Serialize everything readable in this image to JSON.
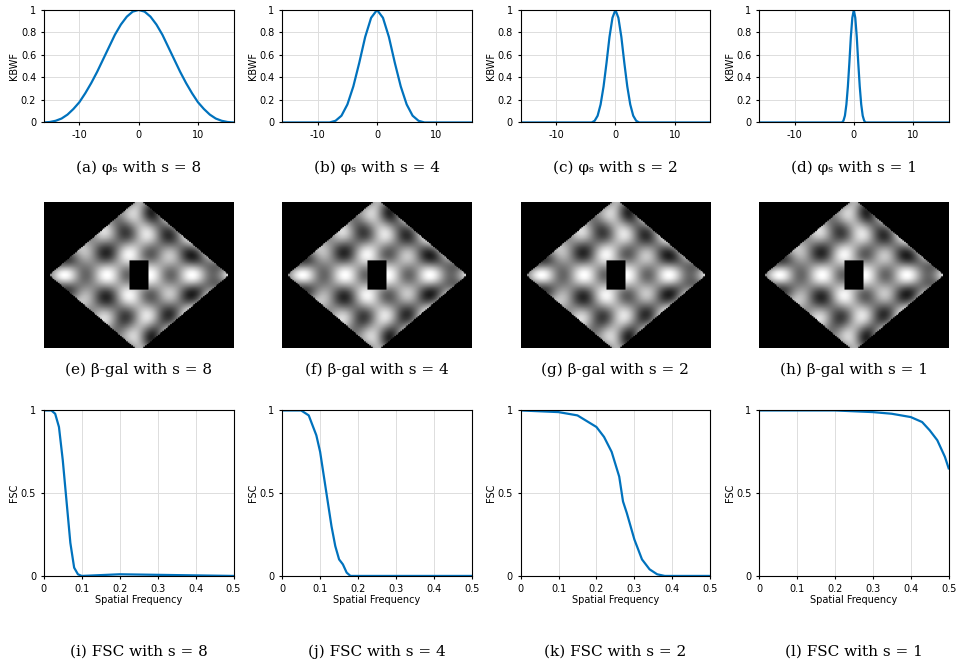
{
  "chart_data": [
    {
      "type": "line",
      "title": "(a) φₛ with s = 8",
      "ylabel": "KBWF",
      "color": "#0072bd",
      "grid": true,
      "x": [
        -16,
        -15,
        -14,
        -13,
        -12,
        -11,
        -10,
        -9,
        -8,
        -7,
        -6,
        -5,
        -4,
        -3,
        -2,
        -1,
        0,
        1,
        2,
        3,
        4,
        5,
        6,
        7,
        8,
        9,
        10,
        11,
        12,
        13,
        14,
        15,
        16
      ],
      "values": [
        0,
        0.004,
        0.015,
        0.035,
        0.07,
        0.12,
        0.18,
        0.26,
        0.35,
        0.45,
        0.56,
        0.67,
        0.78,
        0.87,
        0.94,
        0.985,
        1,
        0.985,
        0.94,
        0.87,
        0.78,
        0.67,
        0.56,
        0.45,
        0.35,
        0.26,
        0.18,
        0.12,
        0.07,
        0.035,
        0.015,
        0.004,
        0
      ],
      "xlim": [
        -16,
        16
      ],
      "ylim": [
        0,
        1
      ],
      "xticks": [
        -10,
        0,
        10
      ],
      "yticks": [
        0,
        0.2,
        0.4,
        0.6,
        0.8,
        1
      ]
    },
    {
      "type": "line",
      "title": "(b) φₛ with s = 4",
      "ylabel": "KBWF",
      "color": "#0072bd",
      "grid": true,
      "x": [
        -16,
        -8,
        -7,
        -6,
        -5,
        -4,
        -3,
        -2,
        -1,
        0,
        1,
        2,
        3,
        4,
        5,
        6,
        7,
        8,
        16
      ],
      "values": [
        0,
        0,
        0.015,
        0.06,
        0.16,
        0.32,
        0.53,
        0.76,
        0.93,
        1,
        0.93,
        0.76,
        0.53,
        0.32,
        0.16,
        0.06,
        0.015,
        0,
        0
      ],
      "xlim": [
        -16,
        16
      ],
      "ylim": [
        0,
        1
      ],
      "xticks": [
        -10,
        0,
        10
      ],
      "yticks": [
        0,
        0.2,
        0.4,
        0.6,
        0.8,
        1
      ]
    },
    {
      "type": "line",
      "title": "(c) φₛ with s = 2",
      "ylabel": "KBWF",
      "color": "#0072bd",
      "grid": true,
      "x": [
        -16,
        -4,
        -3.5,
        -3,
        -2.5,
        -2,
        -1.5,
        -1,
        -0.5,
        0,
        0.5,
        1,
        1.5,
        2,
        2.5,
        3,
        3.5,
        4,
        16
      ],
      "values": [
        0,
        0,
        0.015,
        0.06,
        0.16,
        0.32,
        0.53,
        0.76,
        0.93,
        1,
        0.93,
        0.76,
        0.53,
        0.32,
        0.16,
        0.06,
        0.015,
        0,
        0
      ],
      "xlim": [
        -16,
        16
      ],
      "ylim": [
        0,
        1
      ],
      "xticks": [
        -10,
        0,
        10
      ],
      "yticks": [
        0,
        0.2,
        0.4,
        0.6,
        0.8,
        1
      ]
    },
    {
      "type": "line",
      "title": "(d) φₛ with s = 1",
      "ylabel": "KBWF",
      "color": "#0072bd",
      "grid": true,
      "x": [
        -16,
        -2,
        -1.75,
        -1.5,
        -1.25,
        -1,
        -0.75,
        -0.5,
        -0.25,
        0,
        0.25,
        0.5,
        0.75,
        1,
        1.25,
        1.5,
        1.75,
        2,
        16
      ],
      "values": [
        0,
        0,
        0.015,
        0.06,
        0.16,
        0.32,
        0.53,
        0.76,
        0.93,
        1,
        0.93,
        0.76,
        0.53,
        0.32,
        0.16,
        0.06,
        0.015,
        0,
        0
      ],
      "xlim": [
        -16,
        16
      ],
      "ylim": [
        0,
        1
      ],
      "xticks": [
        -10,
        0,
        10
      ],
      "yticks": [
        0,
        0.2,
        0.4,
        0.6,
        0.8,
        1
      ]
    },
    {
      "type": "image",
      "title": "(e) β-gal with s = 8",
      "tick_labels": false
    },
    {
      "type": "image",
      "title": "(f) β-gal with s = 4",
      "tick_labels": false
    },
    {
      "type": "image",
      "title": "(g) β-gal with s = 2",
      "tick_labels": false
    },
    {
      "type": "image",
      "title": "(h) β-gal with s = 1",
      "tick_labels": false
    },
    {
      "type": "line",
      "title": "(i) FSC with s = 8",
      "ylabel": "FSC",
      "xlabel": "Spatial Frequency",
      "color": "#0072bd",
      "grid": true,
      "x": [
        0,
        0.02,
        0.03,
        0.04,
        0.05,
        0.06,
        0.07,
        0.08,
        0.09,
        0.1,
        0.2,
        0.5
      ],
      "values": [
        1,
        1,
        0.98,
        0.9,
        0.7,
        0.45,
        0.2,
        0.05,
        0.01,
        0,
        0.01,
        0
      ],
      "xlim": [
        0,
        0.5
      ],
      "ylim": [
        0,
        1
      ],
      "xticks": [
        0,
        0.1,
        0.2,
        0.3,
        0.4,
        0.5
      ],
      "yticks": [
        0,
        0.5,
        1
      ]
    },
    {
      "type": "line",
      "title": "(j) FSC with s = 4",
      "ylabel": "FSC",
      "xlabel": "Spatial Frequency",
      "color": "#0072bd",
      "grid": true,
      "x": [
        0,
        0.05,
        0.07,
        0.09,
        0.1,
        0.11,
        0.12,
        0.13,
        0.14,
        0.15,
        0.16,
        0.17,
        0.18,
        0.5
      ],
      "values": [
        1,
        1,
        0.97,
        0.85,
        0.75,
        0.6,
        0.45,
        0.3,
        0.18,
        0.1,
        0.07,
        0.02,
        0,
        0
      ],
      "xlim": [
        0,
        0.5
      ],
      "ylim": [
        0,
        1
      ],
      "xticks": [
        0,
        0.1,
        0.2,
        0.3,
        0.4,
        0.5
      ],
      "yticks": [
        0,
        0.5,
        1
      ]
    },
    {
      "type": "line",
      "title": "(k) FSC with s = 2",
      "ylabel": "FSC",
      "xlabel": "Spatial Frequency",
      "color": "#0072bd",
      "grid": true,
      "x": [
        0,
        0.1,
        0.15,
        0.2,
        0.22,
        0.24,
        0.26,
        0.27,
        0.28,
        0.3,
        0.32,
        0.34,
        0.36,
        0.38,
        0.5
      ],
      "values": [
        1,
        0.99,
        0.97,
        0.9,
        0.84,
        0.75,
        0.6,
        0.45,
        0.38,
        0.22,
        0.1,
        0.04,
        0.01,
        0,
        0
      ],
      "xlim": [
        0,
        0.5
      ],
      "ylim": [
        0,
        1
      ],
      "xticks": [
        0,
        0.1,
        0.2,
        0.3,
        0.4,
        0.5
      ],
      "yticks": [
        0,
        0.5,
        1
      ]
    },
    {
      "type": "line",
      "title": "(l) FSC with s = 1",
      "ylabel": "FSC",
      "xlabel": "Spatial Frequency",
      "color": "#0072bd",
      "grid": true,
      "x": [
        0,
        0.2,
        0.3,
        0.35,
        0.4,
        0.43,
        0.45,
        0.47,
        0.49,
        0.5
      ],
      "values": [
        1,
        1,
        0.99,
        0.98,
        0.96,
        0.93,
        0.88,
        0.82,
        0.72,
        0.65
      ],
      "xlim": [
        0,
        0.5
      ],
      "ylim": [
        0,
        1
      ],
      "xticks": [
        0,
        0.1,
        0.2,
        0.3,
        0.4,
        0.5
      ],
      "yticks": [
        0,
        0.5,
        1
      ]
    }
  ]
}
